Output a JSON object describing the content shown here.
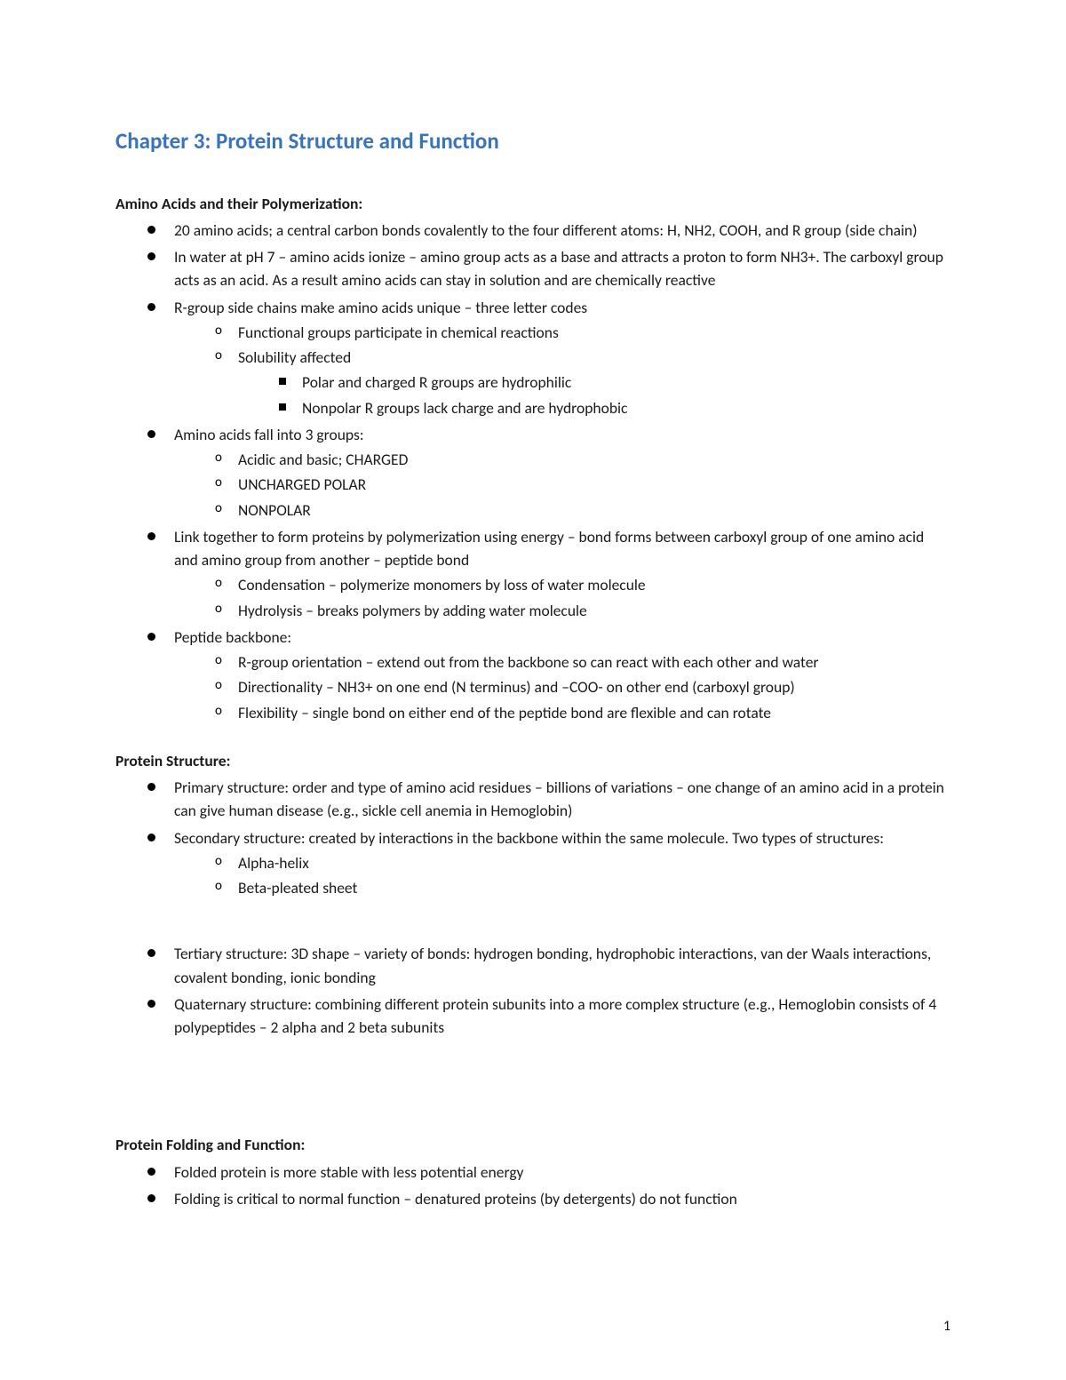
{
  "title": "Chapter 3: Protein Structure and Function",
  "page_number": "1",
  "sections": [
    {
      "heading": "Amino Acids and their Polymerization:",
      "items": [
        {
          "text": "20 amino acids; a central carbon bonds covalently to the four different atoms: H, NH2, COOH, and R group (side chain)"
        },
        {
          "text": "In water at pH 7 – amino acids ionize – amino group acts as a base and attracts a proton to form NH3+. The carboxyl group acts as an acid. As a result amino acids can stay in solution and are chemically reactive"
        },
        {
          "text": "R-group side chains make amino acids unique – three letter codes",
          "children": [
            {
              "text": "Functional groups participate in chemical reactions"
            },
            {
              "text": "Solubility affected",
              "children": [
                {
                  "text": "Polar and charged R groups are hydrophilic"
                },
                {
                  "text": "Nonpolar R groups lack charge and are hydrophobic"
                }
              ]
            }
          ]
        },
        {
          "text": "Amino acids fall into 3 groups:",
          "children": [
            {
              "text": "Acidic and basic; CHARGED"
            },
            {
              "text": "UNCHARGED POLAR"
            },
            {
              "text": "NONPOLAR"
            }
          ]
        },
        {
          "text": "Link together to form proteins by polymerization using energy – bond forms between carboxyl group of one amino acid and amino group from another – peptide bond",
          "children": [
            {
              "text": "Condensation – polymerize monomers by loss of water molecule"
            },
            {
              "text": "Hydrolysis – breaks polymers by adding water molecule"
            }
          ]
        },
        {
          "text": "Peptide backbone:",
          "children": [
            {
              "text": "R-group orientation – extend out from the backbone so can react with each other and water"
            },
            {
              "text": "Directionality – NH3+ on one end (N terminus) and –COO- on other end (carboxyl group)"
            },
            {
              "text": "Flexibility – single bond on either end of the peptide bond are flexible and can rotate"
            }
          ]
        }
      ]
    },
    {
      "heading": "Protein Structure:",
      "items": [
        {
          "text": "Primary structure: order and type of amino acid residues – billions of variations – one change of an amino acid in a protein can give human disease (e.g., sickle cell anemia in Hemoglobin)"
        },
        {
          "text": "Secondary structure: created by interactions in the backbone within the same molecule. Two types of structures:",
          "children": [
            {
              "text": "Alpha-helix"
            },
            {
              "text": "Beta-pleated sheet"
            }
          ]
        }
      ]
    },
    {
      "items": [
        {
          "text": "Tertiary structure: 3D shape – variety of bonds: hydrogen bonding, hydrophobic interactions, van der Waals interactions, covalent bonding, ionic bonding"
        },
        {
          "text": "Quaternary structure: combining different protein subunits into a more complex structure (e.g., Hemoglobin consists of 4 polypeptides – 2 alpha and 2 beta subunits"
        }
      ]
    },
    {
      "heading": "Protein Folding and Function:",
      "items": [
        {
          "text": "Folded protein is more stable with less potential energy"
        },
        {
          "text": "Folding is critical to normal function – denatured proteins (by detergents) do not function"
        }
      ]
    }
  ]
}
